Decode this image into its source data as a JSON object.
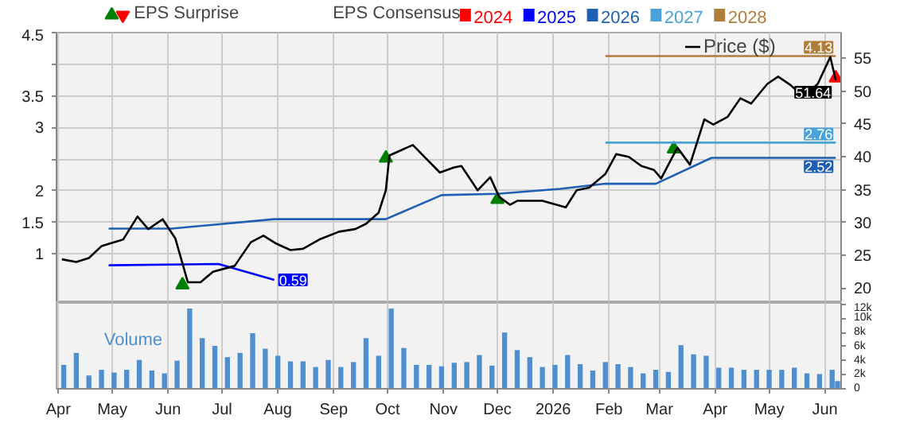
{
  "chart_data": [
    {
      "type": "line",
      "xlim": [
        "2025-03-31",
        "2026-06-10"
      ],
      "ylim": [
        0.25,
        4.5
      ],
      "y2lim": [
        18,
        58.9
      ],
      "xticks": [
        {
          "value": "2025-04-01",
          "label": null
        },
        {
          "value": "2025-05-01",
          "label": null
        },
        {
          "value": "2025-06-01",
          "label": null
        },
        {
          "value": "2025-07-01",
          "label": null
        },
        {
          "value": "2025-08-01",
          "label": null
        },
        {
          "value": "2025-09-01",
          "label": null
        },
        {
          "value": "2025-10-01",
          "label": null
        },
        {
          "value": "2025-11-01",
          "label": null
        },
        {
          "value": "2025-12-01",
          "label": null
        },
        {
          "value": "2026-01-01",
          "label": null
        },
        {
          "value": "2026-02-01",
          "label": null
        },
        {
          "value": "2026-03-01",
          "label": null
        },
        {
          "value": "2026-04-01",
          "label": null
        },
        {
          "value": "2026-05-01",
          "label": null
        },
        {
          "value": "2026-06-01",
          "label": null
        }
      ],
      "yticks": [
        1,
        1.5,
        2,
        {
          "value": 2.5,
          "label": null
        },
        3,
        3.5,
        {
          "value": 4,
          "label": null
        },
        4.5
      ],
      "y2ticks": [
        20,
        25,
        30,
        35,
        40,
        45,
        50,
        55
      ],
      "grid": true,
      "tick_labels": "y",
      "legend": "top",
      "legend_title": "EPS Consensus",
      "series": [
        {
          "name": "EPS Surprise",
          "type": "scatter",
          "axis": "y2",
          "marker": "triangle",
          "x": [
            "2025-06-09",
            "2025-09-30",
            "2025-12-01",
            "2026-03-09",
            "2026-06-07"
          ],
          "values": [
            20.5,
            39.8,
            33.5,
            41.2,
            52.0
          ],
          "colors": [
            "#008000",
            "#008000",
            "#008000",
            "#008000",
            "#ff0000"
          ]
        },
        {
          "name": "2024",
          "color": "#ff0000"
        },
        {
          "name": "2025",
          "color": "#0000ff",
          "x": [
            "2025-04-29",
            "2025-06-29",
            "2025-07-30"
          ],
          "values": [
            0.82,
            0.84,
            0.59
          ],
          "value_labels": [
            null,
            null,
            "0.59"
          ]
        },
        {
          "name": "2026",
          "color": "#1f5fb4",
          "x": [
            "2025-04-29",
            "2025-06-03",
            "2025-07-30",
            "2025-09-30",
            "2025-10-31",
            "2025-12-01",
            "2026-01-05",
            "2026-01-30",
            "2026-02-27",
            "2026-03-30",
            "2026-06-07"
          ],
          "values": [
            1.4,
            1.4,
            1.55,
            1.55,
            1.93,
            1.95,
            2.03,
            2.11,
            2.11,
            2.52,
            2.52
          ],
          "value_labels": [
            null,
            null,
            null,
            null,
            null,
            null,
            null,
            null,
            null,
            null,
            "2.52"
          ]
        },
        {
          "name": "2027",
          "color": "#4aa3d8",
          "x": [
            "2026-01-30",
            "2026-06-07"
          ],
          "values": [
            2.76,
            2.76
          ],
          "value_labels": [
            null,
            "2.76"
          ]
        },
        {
          "name": "2028",
          "color": "#b07d3a",
          "x": [
            "2026-01-30",
            "2026-06-07"
          ],
          "values": [
            4.13,
            4.13
          ],
          "value_labels": [
            null,
            "4.13"
          ]
        },
        {
          "name": "Price ($)",
          "color": "#000000",
          "axis": "y2",
          "x": [
            "2025-04-03",
            "2025-04-11",
            "2025-04-18",
            "2025-04-25",
            "2025-05-07",
            "2025-05-15",
            "2025-05-21",
            "2025-05-29",
            "2025-06-05",
            "2025-06-12",
            "2025-06-19",
            "2025-06-26",
            "2025-07-08",
            "2025-07-17",
            "2025-07-24",
            "2025-07-31",
            "2025-08-08",
            "2025-08-15",
            "2025-08-24",
            "2025-09-04",
            "2025-09-13",
            "2025-09-19",
            "2025-09-26",
            "2025-09-30",
            "2025-10-02",
            "2025-10-15",
            "2025-10-30",
            "2025-11-07",
            "2025-11-11",
            "2025-11-20",
            "2025-11-27",
            "2025-12-02",
            "2025-12-08",
            "2025-12-12",
            "2025-12-26",
            "2026-01-08",
            "2026-01-14",
            "2026-01-21",
            "2026-01-30",
            "2026-02-05",
            "2026-02-12",
            "2026-02-19",
            "2026-02-26",
            "2026-03-02",
            "2026-03-11",
            "2026-03-18",
            "2026-03-26",
            "2026-03-31",
            "2026-04-08",
            "2026-04-15",
            "2026-04-21",
            "2026-04-30",
            "2026-05-06",
            "2026-05-13",
            "2026-05-20",
            "2026-05-28",
            "2026-06-04",
            "2026-06-07"
          ],
          "values": [
            24.4,
            24.0,
            24.6,
            26.4,
            27.4,
            30.9,
            29.0,
            30.5,
            27.6,
            20.9,
            20.9,
            22.5,
            23.4,
            27.0,
            28.0,
            26.8,
            25.8,
            26.0,
            27.4,
            28.6,
            29.0,
            29.8,
            31.5,
            34.9,
            40.2,
            41.8,
            37.6,
            38.4,
            38.6,
            34.9,
            36.9,
            33.9,
            32.7,
            33.3,
            33.3,
            32.3,
            34.9,
            35.3,
            37.4,
            40.4,
            40.0,
            38.6,
            38.0,
            36.7,
            41.4,
            38.8,
            45.7,
            44.9,
            46.1,
            48.9,
            48.1,
            51.1,
            52.2,
            50.9,
            49.1,
            51.1,
            55.2,
            51.64
          ],
          "value_labels": [
            null,
            null,
            null,
            null,
            null,
            null,
            null,
            null,
            null,
            null,
            null,
            null,
            null,
            null,
            null,
            null,
            null,
            null,
            null,
            null,
            null,
            null,
            null,
            null,
            null,
            null,
            null,
            null,
            null,
            null,
            null,
            null,
            null,
            null,
            null,
            null,
            null,
            null,
            null,
            null,
            null,
            null,
            null,
            null,
            null,
            null,
            null,
            null,
            null,
            null,
            null,
            null,
            null,
            null,
            null,
            null,
            null,
            "51.64"
          ]
        }
      ]
    },
    {
      "type": "bar",
      "color": "#4f8fcf",
      "xlim": [
        "2025-03-31",
        "2026-06-10"
      ],
      "ylim": [
        0,
        12.2
      ],
      "xticks": [
        {
          "value": "2025-04-01",
          "label": "Apr"
        },
        {
          "value": "2025-05-01",
          "label": "May"
        },
        {
          "value": "2025-06-01",
          "label": "Jun"
        },
        {
          "value": "2025-07-01",
          "label": "Jul"
        },
        {
          "value": "2025-08-01",
          "label": "Aug"
        },
        {
          "value": "2025-09-01",
          "label": "Sep"
        },
        {
          "value": "2025-10-01",
          "label": "Oct"
        },
        {
          "value": "2025-11-01",
          "label": "Nov"
        },
        {
          "value": "2025-12-01",
          "label": "Dec"
        },
        {
          "value": "2026-01-01",
          "label": "2026"
        },
        {
          "value": "2026-02-01",
          "label": "Feb"
        },
        {
          "value": "2026-03-01",
          "label": "Mar"
        },
        {
          "value": "2026-04-01",
          "label": "Apr"
        },
        {
          "value": "2026-05-01",
          "label": "May"
        },
        {
          "value": "2026-06-01",
          "label": "Jun"
        }
      ],
      "yticks": [
        0,
        {
          "value": 2,
          "label": "2k"
        },
        {
          "value": 4,
          "label": "4k"
        },
        {
          "value": 6,
          "label": "6k"
        },
        {
          "value": 8,
          "label": "8k"
        },
        {
          "value": 10,
          "label": "10k"
        },
        {
          "value": 12,
          "label": "12k"
        }
      ],
      "grid": "x",
      "annotations": [
        "Volume"
      ],
      "x": [
        "2025-04-04",
        "2025-04-11",
        "2025-04-18",
        "2025-04-25",
        "2025-05-02",
        "2025-05-09",
        "2025-05-16",
        "2025-05-23",
        "2025-05-30",
        "2025-06-06",
        "2025-06-13",
        "2025-06-20",
        "2025-06-27",
        "2025-07-04",
        "2025-07-11",
        "2025-07-18",
        "2025-07-25",
        "2025-08-01",
        "2025-08-08",
        "2025-08-15",
        "2025-08-22",
        "2025-08-29",
        "2025-09-05",
        "2025-09-12",
        "2025-09-19",
        "2025-09-26",
        "2025-10-03",
        "2025-10-10",
        "2025-10-17",
        "2025-10-24",
        "2025-10-31",
        "2025-11-07",
        "2025-11-14",
        "2025-11-21",
        "2025-11-28",
        "2025-12-05",
        "2025-12-12",
        "2025-12-19",
        "2025-12-26",
        "2026-01-02",
        "2026-01-09",
        "2026-01-16",
        "2026-01-23",
        "2026-01-30",
        "2026-02-06",
        "2026-02-13",
        "2026-02-20",
        "2026-02-27",
        "2026-03-06",
        "2026-03-13",
        "2026-03-20",
        "2026-03-27",
        "2026-04-03",
        "2026-04-10",
        "2026-04-17",
        "2026-04-24",
        "2026-05-01",
        "2026-05-08",
        "2026-05-15",
        "2026-05-22",
        "2026-05-29",
        "2026-06-05",
        "2026-06-08"
      ],
      "values": [
        3.4,
        5.1,
        1.9,
        2.7,
        2.3,
        2.7,
        4.1,
        2.6,
        2.2,
        4.0,
        11.4,
        7.2,
        6.1,
        4.5,
        5.1,
        7.9,
        5.7,
        4.7,
        3.9,
        3.9,
        3.1,
        4.1,
        3.1,
        3.8,
        7.2,
        4.7,
        11.4,
        5.8,
        3.4,
        3.4,
        3.2,
        3.7,
        3.8,
        4.8,
        3.3,
        8.0,
        5.5,
        4.5,
        3.1,
        3.4,
        4.8,
        3.5,
        2.6,
        3.8,
        3.5,
        3.1,
        2.2,
        2.7,
        2.4,
        6.2,
        4.9,
        4.7,
        3.0,
        3.0,
        2.7,
        2.7,
        2.7,
        2.7,
        3.0,
        2.2,
        2.1,
        2.7,
        1.1
      ]
    }
  ]
}
